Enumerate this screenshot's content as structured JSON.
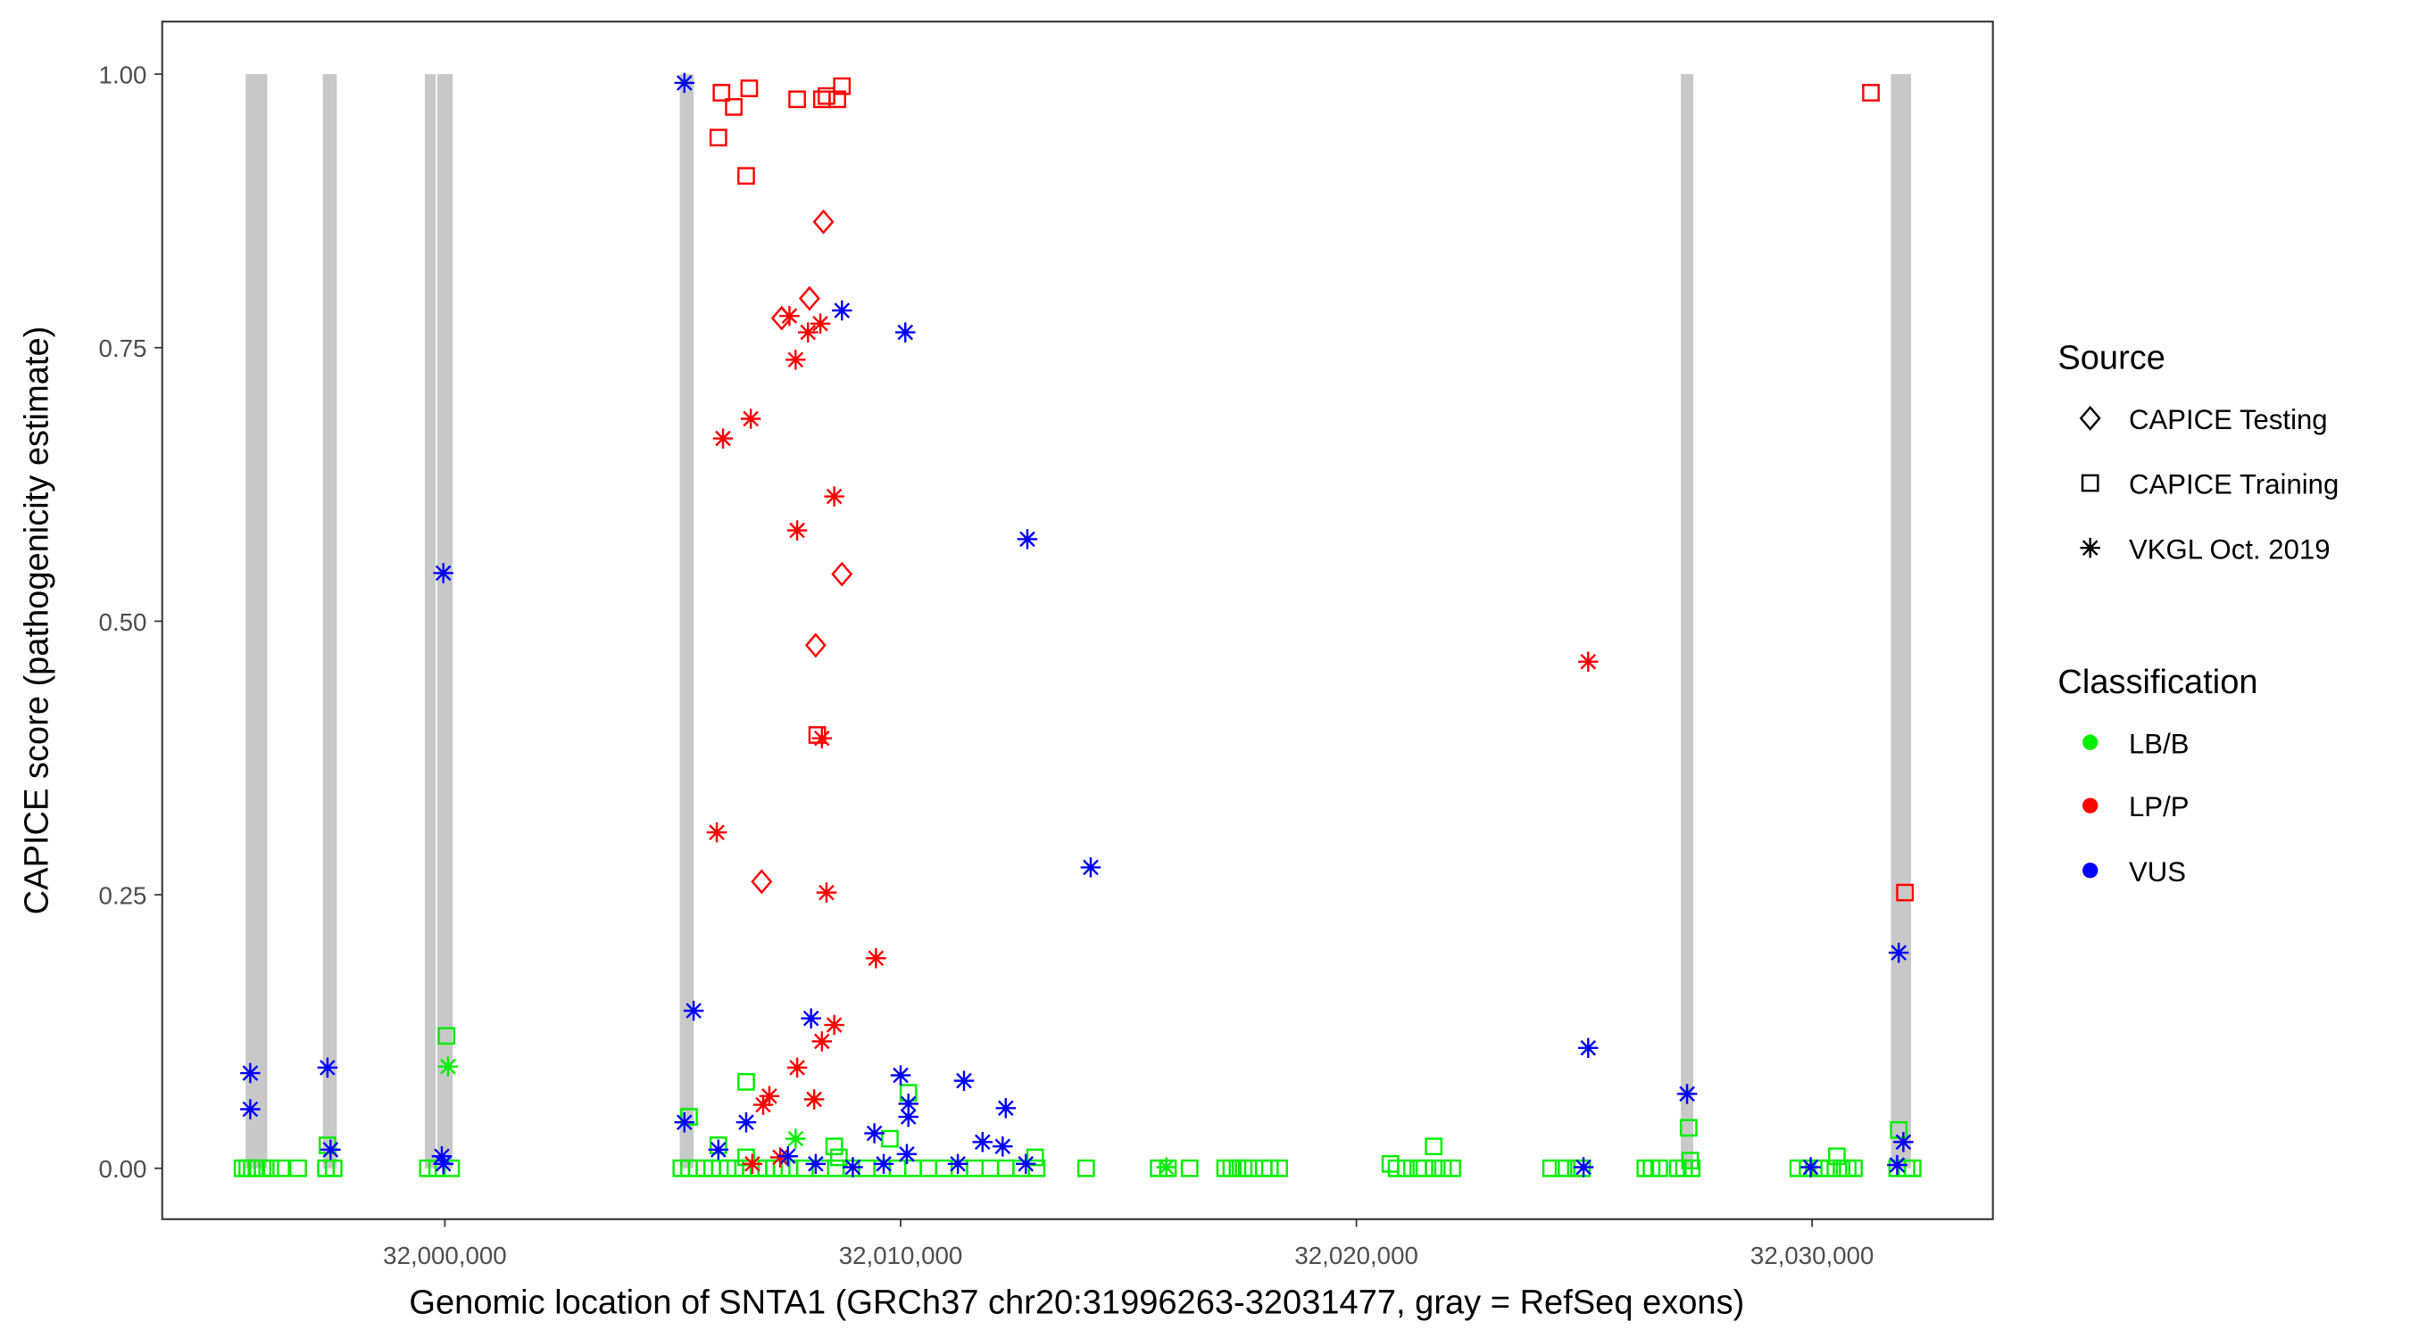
{
  "chart_data": {
    "type": "scatter",
    "xlabel": "Genomic location of SNTA1 (GRCh37 chr20:31996263-32031477, gray = RefSeq exons)",
    "ylabel": "CAPICE score (pathogenicity estimate)",
    "xlim": [
      31993797,
      32033966
    ],
    "ylim": [
      -0.0465,
      1.048
    ],
    "x_ticks": [
      32000000,
      32010000,
      32020000,
      32030000
    ],
    "x_tick_labels": [
      "32,000,000",
      "32,010,000",
      "32,020,000",
      "32,030,000"
    ],
    "y_ticks": [
      0,
      0.25,
      0.5,
      0.75,
      1.0
    ],
    "y_tick_labels": [
      "0.00",
      "0.25",
      "0.50",
      "0.75",
      "1.00"
    ],
    "grid": false,
    "exons": [
      [
        31995627,
        31996102
      ],
      [
        31997322,
        31997627
      ],
      [
        31999559,
        31999797
      ],
      [
        31999830,
        32000170
      ],
      [
        32005153,
        32005458
      ],
      [
        32027120,
        32027391
      ],
      [
        32031730,
        32032171
      ]
    ],
    "legend": {
      "placement": "right",
      "source_title": "Source",
      "sources": [
        {
          "label": "CAPICE Testing",
          "shape": "diamond"
        },
        {
          "label": "CAPICE Training",
          "shape": "square"
        },
        {
          "label": "VKGL Oct. 2019",
          "shape": "asterisk"
        }
      ],
      "class_title": "Classification",
      "classes": [
        {
          "label": "LB/B",
          "color": "#00ee00"
        },
        {
          "label": "LP/P",
          "color": "#ff0000"
        },
        {
          "label": "VUS",
          "color": "#0000ff"
        }
      ]
    },
    "point_format": [
      "position",
      "score",
      "source_index",
      "class_index"
    ],
    "points": [
      [
        31995559,
        0,
        1,
        0
      ],
      [
        31995661,
        0,
        1,
        0
      ],
      [
        31995762,
        0,
        1,
        0
      ],
      [
        31995864,
        0,
        1,
        0
      ],
      [
        31996000,
        0,
        1,
        0
      ],
      [
        31996169,
        0,
        1,
        0
      ],
      [
        31996407,
        0,
        1,
        0
      ],
      [
        31996779,
        0,
        1,
        0
      ],
      [
        31997390,
        0,
        1,
        0
      ],
      [
        31997559,
        0,
        1,
        0
      ],
      [
        31999627,
        0,
        1,
        0
      ],
      [
        31999830,
        0,
        1,
        0
      ],
      [
        32000136,
        0,
        1,
        0
      ],
      [
        32005187,
        0,
        1,
        0
      ],
      [
        32005356,
        0,
        1,
        0
      ],
      [
        32005526,
        0,
        1,
        0
      ],
      [
        32005695,
        0,
        1,
        0
      ],
      [
        32005865,
        0,
        1,
        0
      ],
      [
        32006034,
        0,
        1,
        0
      ],
      [
        32006204,
        0,
        1,
        0
      ],
      [
        32006373,
        0,
        1,
        0
      ],
      [
        32006543,
        0,
        1,
        0
      ],
      [
        32006712,
        0,
        1,
        0
      ],
      [
        32006882,
        0,
        1,
        0
      ],
      [
        32007051,
        0,
        1,
        0
      ],
      [
        32007221,
        0,
        1,
        0
      ],
      [
        32007390,
        0,
        1,
        0
      ],
      [
        32007560,
        0,
        1,
        0
      ],
      [
        32007899,
        0,
        1,
        0
      ],
      [
        32008238,
        0,
        1,
        0
      ],
      [
        32008577,
        0,
        1,
        0
      ],
      [
        32008916,
        0,
        1,
        0
      ],
      [
        32009255,
        0,
        1,
        0
      ],
      [
        32009594,
        0,
        1,
        0
      ],
      [
        32009933,
        0,
        1,
        0
      ],
      [
        32010272,
        0,
        1,
        0
      ],
      [
        32010611,
        0,
        1,
        0
      ],
      [
        32010950,
        0,
        1,
        0
      ],
      [
        32011289,
        0,
        1,
        0
      ],
      [
        32011628,
        0,
        1,
        0
      ],
      [
        32011967,
        0,
        1,
        0
      ],
      [
        32012306,
        0,
        1,
        0
      ],
      [
        32012645,
        0,
        1,
        0
      ],
      [
        32012984,
        0,
        1,
        0
      ],
      [
        32014069,
        0,
        1,
        0
      ],
      [
        32015662,
        0,
        1,
        0
      ],
      [
        32015865,
        0,
        1,
        0
      ],
      [
        32016340,
        0,
        1,
        0
      ],
      [
        32017120,
        0,
        1,
        0
      ],
      [
        32017255,
        0,
        1,
        0
      ],
      [
        32017391,
        0,
        1,
        0
      ],
      [
        32017526,
        0,
        1,
        0
      ],
      [
        32017628,
        0,
        1,
        0
      ],
      [
        32017967,
        0,
        1,
        0
      ],
      [
        32018103,
        0,
        1,
        0
      ],
      [
        32018306,
        0,
        1,
        0
      ],
      [
        32020882,
        0,
        1,
        0
      ],
      [
        32021086,
        0,
        1,
        0
      ],
      [
        32021357,
        0,
        1,
        0
      ],
      [
        32021493,
        0,
        1,
        0
      ],
      [
        32021696,
        0,
        1,
        0
      ],
      [
        32021899,
        0,
        1,
        0
      ],
      [
        32022103,
        0,
        1,
        0
      ],
      [
        32024272,
        0,
        1,
        0
      ],
      [
        32024544,
        0,
        1,
        0
      ],
      [
        32024815,
        0,
        1,
        0
      ],
      [
        32024950,
        0,
        1,
        0
      ],
      [
        32026340,
        0,
        1,
        0
      ],
      [
        32026476,
        0,
        1,
        0
      ],
      [
        32026645,
        0,
        1,
        0
      ],
      [
        32027052,
        0,
        1,
        0
      ],
      [
        32027188,
        0,
        1,
        0
      ],
      [
        32027357,
        0,
        1,
        0
      ],
      [
        32029696,
        0,
        1,
        0
      ],
      [
        32029900,
        0,
        1,
        0
      ],
      [
        32030171,
        0,
        1,
        0
      ],
      [
        32030374,
        0,
        1,
        0
      ],
      [
        32030646,
        0,
        1,
        0
      ],
      [
        32030781,
        0,
        1,
        0
      ],
      [
        32030917,
        0,
        1,
        0
      ],
      [
        32031866,
        0,
        1,
        0
      ],
      [
        32032069,
        0,
        1,
        0
      ],
      [
        32032205,
        0,
        1,
        0
      ],
      [
        32000034,
        0.121,
        1,
        0
      ],
      [
        32006610,
        0.079,
        1,
        0
      ],
      [
        32005356,
        0.047,
        1,
        0
      ],
      [
        31997424,
        0.021,
        1,
        0
      ],
      [
        32006000,
        0.021,
        1,
        0
      ],
      [
        32008543,
        0.02,
        1,
        0
      ],
      [
        32010170,
        0.069,
        1,
        0
      ],
      [
        32009763,
        0.027,
        1,
        0
      ],
      [
        32021696,
        0.02,
        1,
        0
      ],
      [
        32027290,
        0.037,
        1,
        0
      ],
      [
        32031900,
        0.035,
        1,
        0
      ],
      [
        32030543,
        0.011,
        1,
        0
      ],
      [
        32006610,
        0.01,
        1,
        0
      ],
      [
        32008645,
        0.01,
        1,
        0
      ],
      [
        32012950,
        0.01,
        1,
        0
      ],
      [
        32027324,
        0.007,
        1,
        0
      ],
      [
        32020747,
        0.004,
        1,
        0
      ],
      [
        32000068,
        0.093,
        2,
        0
      ],
      [
        32007695,
        0.027,
        2,
        0
      ],
      [
        32008102,
        0.063,
        2,
        0
      ],
      [
        32015831,
        0.001,
        2,
        0
      ],
      [
        32006068,
        0.983,
        1,
        1
      ],
      [
        32006678,
        0.987,
        1,
        1
      ],
      [
        32006339,
        0.97,
        1,
        1
      ],
      [
        32006000,
        0.942,
        1,
        1
      ],
      [
        32006610,
        0.907,
        1,
        1
      ],
      [
        32007729,
        0.977,
        1,
        1
      ],
      [
        32008272,
        0.977,
        1,
        1
      ],
      [
        32008373,
        0.98,
        1,
        1
      ],
      [
        32008611,
        0.977,
        1,
        1
      ],
      [
        32008712,
        0.989,
        1,
        1
      ],
      [
        32031290,
        0.983,
        1,
        1
      ],
      [
        32032036,
        0.252,
        1,
        1
      ],
      [
        32008170,
        0.396,
        1,
        1
      ],
      [
        32008306,
        0.865,
        0,
        1
      ],
      [
        32008000,
        0.795,
        0,
        1
      ],
      [
        32007390,
        0.777,
        0,
        1
      ],
      [
        32008712,
        0.543,
        0,
        1
      ],
      [
        32008136,
        0.478,
        0,
        1
      ],
      [
        32006950,
        0.262,
        0,
        1
      ],
      [
        32007560,
        0.779,
        2,
        1
      ],
      [
        32008238,
        0.772,
        2,
        1
      ],
      [
        32007967,
        0.764,
        2,
        1
      ],
      [
        32007695,
        0.739,
        2,
        1
      ],
      [
        32006712,
        0.685,
        2,
        1
      ],
      [
        32006102,
        0.667,
        2,
        1
      ],
      [
        32008543,
        0.614,
        2,
        1
      ],
      [
        32007729,
        0.583,
        2,
        1
      ],
      [
        32008272,
        0.393,
        2,
        1
      ],
      [
        32025086,
        0.463,
        2,
        1
      ],
      [
        32005966,
        0.307,
        2,
        1
      ],
      [
        32008373,
        0.252,
        2,
        1
      ],
      [
        32009458,
        0.192,
        2,
        1
      ],
      [
        32008543,
        0.131,
        2,
        1
      ],
      [
        32008272,
        0.116,
        2,
        1
      ],
      [
        32007729,
        0.092,
        2,
        1
      ],
      [
        32007119,
        0.066,
        2,
        1
      ],
      [
        32006983,
        0.058,
        2,
        1
      ],
      [
        32008102,
        0.063,
        2,
        1
      ],
      [
        32006746,
        0.004,
        2,
        1
      ],
      [
        32007356,
        0.01,
        2,
        1
      ],
      [
        32005255,
        0.992,
        2,
        2
      ],
      [
        32008712,
        0.784,
        2,
        2
      ],
      [
        32010102,
        0.764,
        2,
        2
      ],
      [
        32012780,
        0.575,
        2,
        2
      ],
      [
        31999966,
        0.544,
        2,
        2
      ],
      [
        32014170,
        0.275,
        2,
        2
      ],
      [
        32031900,
        0.197,
        2,
        2
      ],
      [
        32005458,
        0.144,
        2,
        2
      ],
      [
        32008034,
        0.137,
        2,
        2
      ],
      [
        32025086,
        0.11,
        2,
        2
      ],
      [
        31995729,
        0.087,
        2,
        2
      ],
      [
        31997424,
        0.092,
        2,
        2
      ],
      [
        31995729,
        0.054,
        2,
        2
      ],
      [
        32010000,
        0.085,
        2,
        2
      ],
      [
        32011390,
        0.08,
        2,
        2
      ],
      [
        32012306,
        0.055,
        2,
        2
      ],
      [
        32010170,
        0.059,
        2,
        2
      ],
      [
        32010170,
        0.047,
        2,
        2
      ],
      [
        32027256,
        0.068,
        2,
        2
      ],
      [
        32005255,
        0.042,
        2,
        2
      ],
      [
        32006610,
        0.042,
        2,
        2
      ],
      [
        32009424,
        0.032,
        2,
        2
      ],
      [
        31997491,
        0.017,
        2,
        2
      ],
      [
        32006000,
        0.017,
        2,
        2
      ],
      [
        32011797,
        0.024,
        2,
        2
      ],
      [
        32012238,
        0.02,
        2,
        2
      ],
      [
        32032002,
        0.024,
        2,
        2
      ],
      [
        31999932,
        0.011,
        2,
        2
      ],
      [
        31999966,
        0.004,
        2,
        2
      ],
      [
        32007526,
        0.011,
        2,
        2
      ],
      [
        32010136,
        0.013,
        2,
        2
      ],
      [
        32008136,
        0.004,
        2,
        2
      ],
      [
        32008950,
        0.001,
        2,
        2
      ],
      [
        32011255,
        0.004,
        2,
        2
      ],
      [
        32012746,
        0.004,
        2,
        2
      ],
      [
        32024984,
        0.001,
        2,
        2
      ],
      [
        32029968,
        0.001,
        2,
        2
      ],
      [
        32031866,
        0.003,
        2,
        2
      ],
      [
        32009628,
        0.004,
        2,
        2
      ]
    ]
  }
}
